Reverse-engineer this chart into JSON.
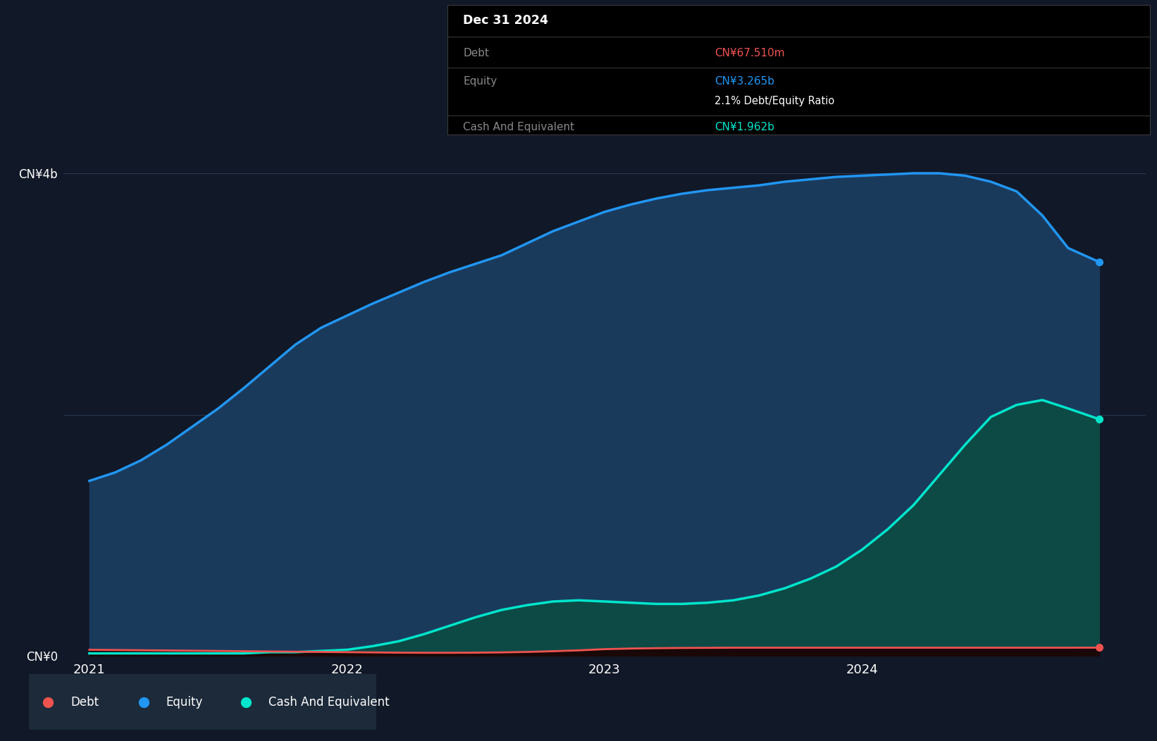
{
  "bg_color": "#111827",
  "plot_bg_color": "#111827",
  "grid_color": "#2a3a50",
  "ylabel_top": "CN¥4b",
  "ylabel_bottom": "CN¥0",
  "equity_color": "#2196f3",
  "cash_color": "#00e5cc",
  "debt_color": "#ef5350",
  "equity_fill": "#1a3a5c",
  "cash_fill": "#0d4a45",
  "tooltip_bg": "#000000",
  "tooltip_border": "#3a3a3a",
  "tooltip_title": "Dec 31 2024",
  "tooltip_debt_label": "Debt",
  "tooltip_debt_value": "CN¥67.510m",
  "tooltip_equity_label": "Equity",
  "tooltip_equity_value": "CN¥3.265b",
  "tooltip_ratio": "2.1% Debt/Equity Ratio",
  "tooltip_cash_label": "Cash And Equivalent",
  "tooltip_cash_value": "CN¥1.962b",
  "legend_debt": "Debt",
  "legend_equity": "Equity",
  "legend_cash": "Cash And Equivalent",
  "x_data": [
    2021.0,
    2021.1,
    2021.2,
    2021.3,
    2021.4,
    2021.5,
    2021.6,
    2021.7,
    2021.8,
    2021.9,
    2022.0,
    2022.1,
    2022.2,
    2022.3,
    2022.4,
    2022.5,
    2022.6,
    2022.7,
    2022.8,
    2022.9,
    2023.0,
    2023.1,
    2023.2,
    2023.3,
    2023.4,
    2023.5,
    2023.6,
    2023.7,
    2023.8,
    2023.9,
    2024.0,
    2024.1,
    2024.2,
    2024.3,
    2024.4,
    2024.5,
    2024.6,
    2024.7,
    2024.8,
    2024.92
  ],
  "equity_data": [
    1.45,
    1.52,
    1.62,
    1.75,
    1.9,
    2.05,
    2.22,
    2.4,
    2.58,
    2.72,
    2.82,
    2.92,
    3.01,
    3.1,
    3.18,
    3.25,
    3.32,
    3.42,
    3.52,
    3.6,
    3.68,
    3.74,
    3.79,
    3.83,
    3.86,
    3.88,
    3.9,
    3.93,
    3.95,
    3.97,
    3.98,
    3.99,
    4.0,
    4.0,
    3.98,
    3.93,
    3.85,
    3.65,
    3.38,
    3.265
  ],
  "cash_data": [
    0.02,
    0.02,
    0.02,
    0.02,
    0.02,
    0.02,
    0.02,
    0.03,
    0.03,
    0.04,
    0.05,
    0.08,
    0.12,
    0.18,
    0.25,
    0.32,
    0.38,
    0.42,
    0.45,
    0.46,
    0.45,
    0.44,
    0.43,
    0.43,
    0.44,
    0.46,
    0.5,
    0.56,
    0.64,
    0.74,
    0.88,
    1.05,
    1.25,
    1.5,
    1.75,
    1.98,
    2.08,
    2.12,
    2.05,
    1.962
  ],
  "debt_data": [
    0.05,
    0.048,
    0.046,
    0.044,
    0.042,
    0.04,
    0.038,
    0.036,
    0.034,
    0.032,
    0.03,
    0.028,
    0.026,
    0.025,
    0.025,
    0.026,
    0.028,
    0.032,
    0.038,
    0.045,
    0.055,
    0.06,
    0.063,
    0.065,
    0.066,
    0.067,
    0.067,
    0.067,
    0.067,
    0.067,
    0.067,
    0.067,
    0.067,
    0.067,
    0.067,
    0.067,
    0.067,
    0.067,
    0.067,
    0.06751
  ],
  "ylim": [
    0,
    4.3
  ],
  "xlim_left": 2020.9,
  "xlim_right": 2025.1
}
